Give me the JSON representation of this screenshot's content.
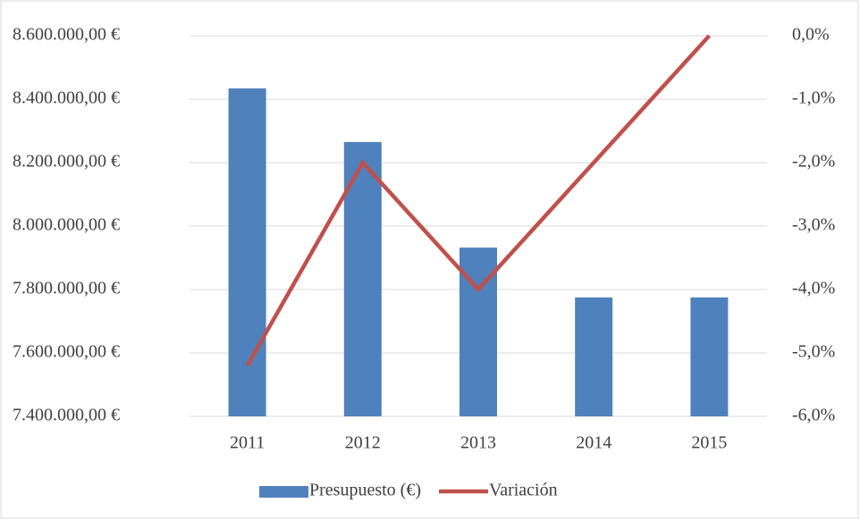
{
  "chart_data": {
    "type": "bar-line",
    "categories": [
      "2011",
      "2012",
      "2013",
      "2014",
      "2015"
    ],
    "series": [
      {
        "name": "Presupuesto (€)",
        "color": "#4f81bd",
        "type": "bar",
        "axis": "y",
        "values": [
          8434000,
          8265000,
          7932000,
          7775000,
          7775000
        ]
      },
      {
        "name": "Variación",
        "color": "#c0504d",
        "type": "line",
        "axis": "y2",
        "values": [
          -5.2,
          -2.0,
          -4.0,
          -2.0,
          0.0
        ]
      }
    ],
    "ylim": [
      7400000,
      8600000
    ],
    "yticks": [
      {
        "value": 7400000,
        "label": "7.400.000,00 €"
      },
      {
        "value": 7600000,
        "label": "7.600.000,00 €"
      },
      {
        "value": 7800000,
        "label": "7.800.000,00 €"
      },
      {
        "value": 8000000,
        "label": "8.000.000,00 €"
      },
      {
        "value": 8200000,
        "label": "8.200.000,00 €"
      },
      {
        "value": 8400000,
        "label": "8.400.000,00 €"
      },
      {
        "value": 8600000,
        "label": "8.600.000,00 €"
      }
    ],
    "y2lim": [
      -6,
      0
    ],
    "y2ticks": [
      {
        "value": -6,
        "label": "-6,0%"
      },
      {
        "value": -5,
        "label": "-5,0%"
      },
      {
        "value": -4,
        "label": "-4,0%"
      },
      {
        "value": -3,
        "label": "-3,0%"
      },
      {
        "value": -2,
        "label": "-2,0%"
      },
      {
        "value": -1,
        "label": "-1,0%"
      },
      {
        "value": 0,
        "label": "0,0%"
      }
    ],
    "grid": true,
    "legend": "bottom"
  }
}
